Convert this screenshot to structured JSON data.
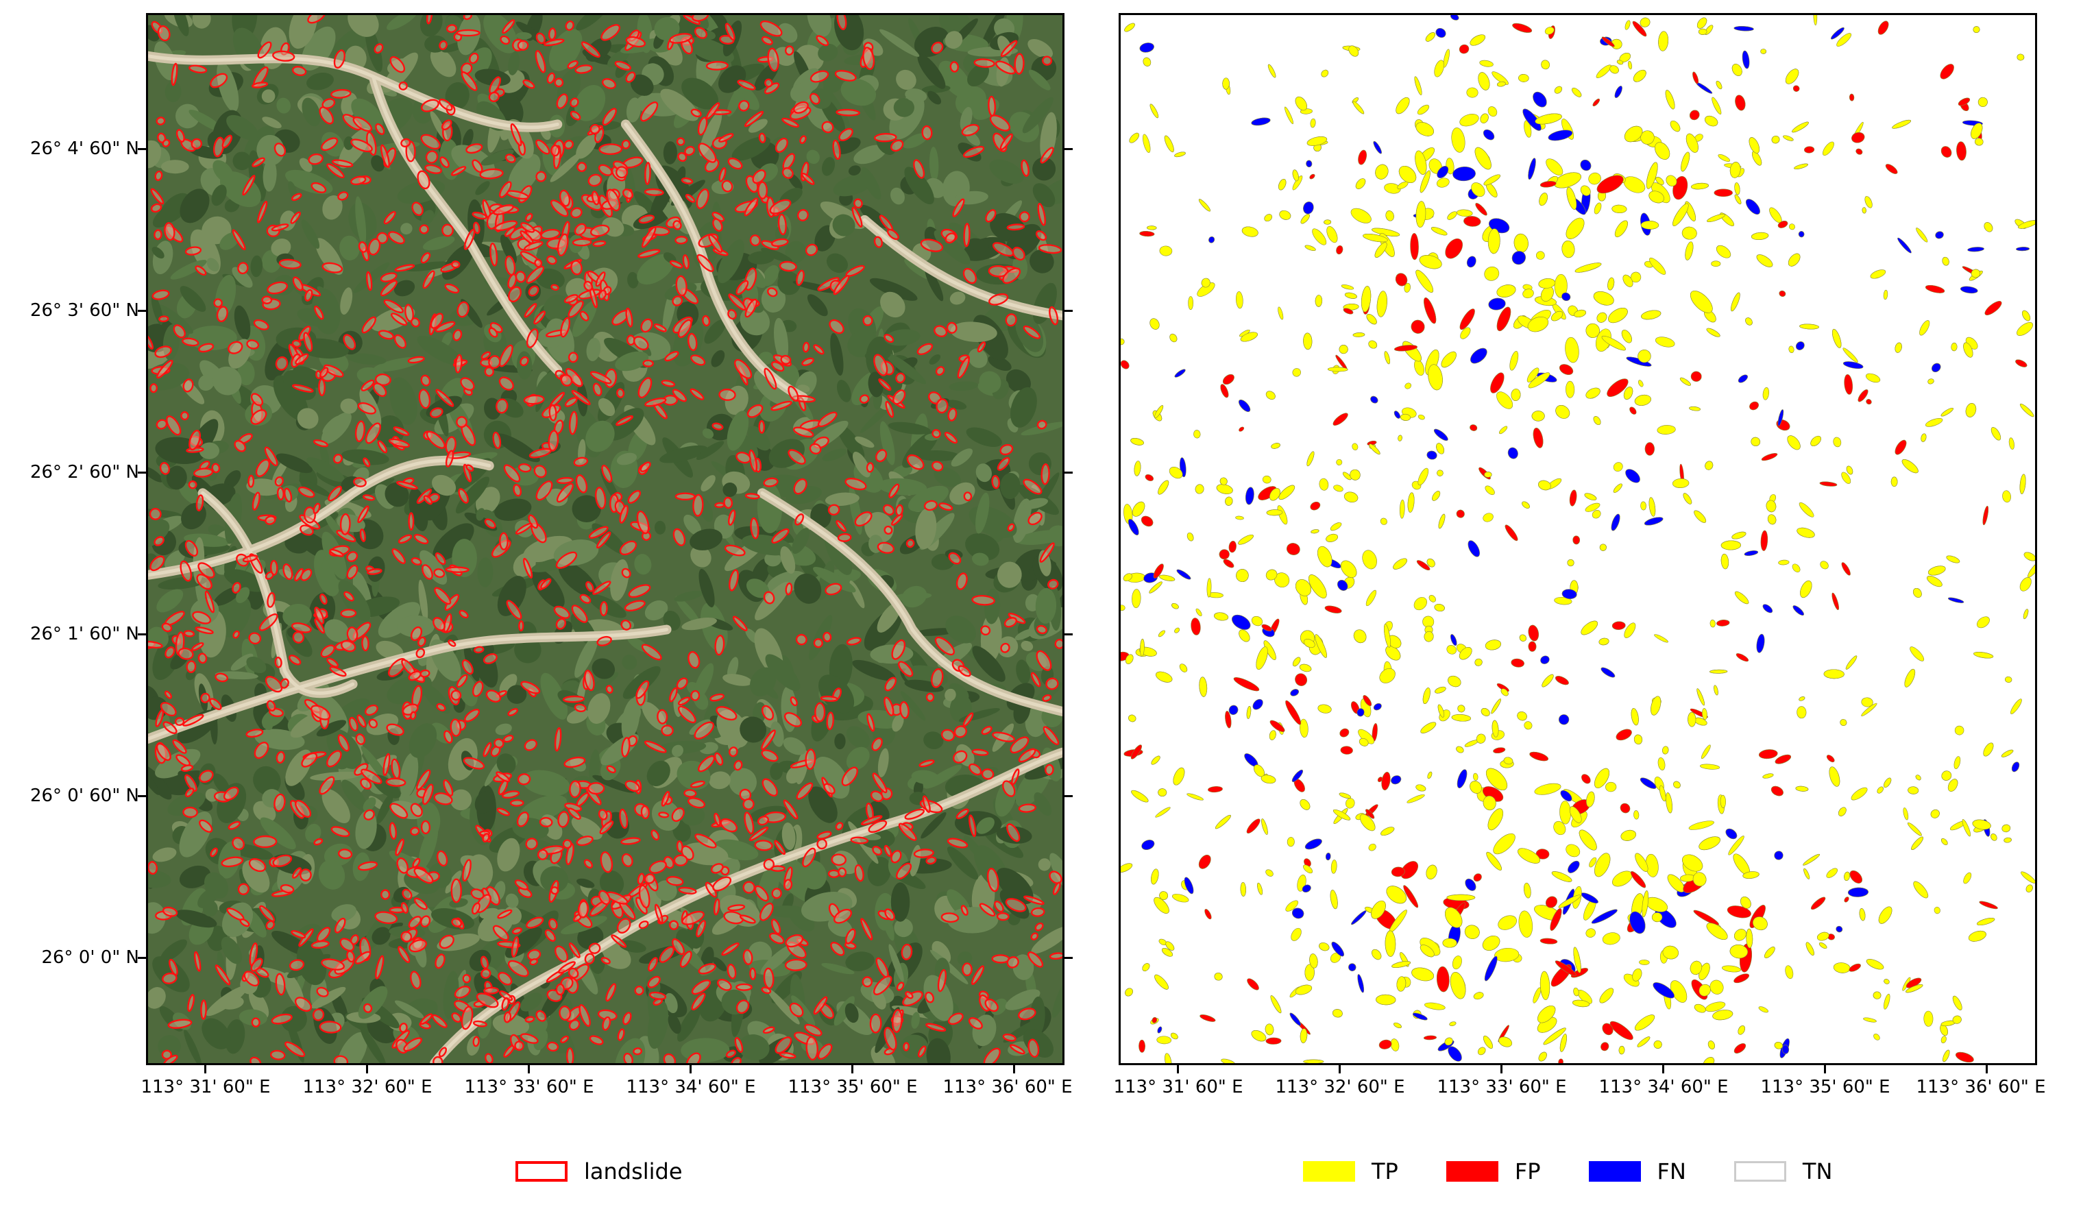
{
  "left_map": {
    "y_ticks": [
      "26° 4' 60\" N",
      "26° 3' 60\" N",
      "26° 2' 60\" N",
      "26° 1' 60\" N",
      "26° 0' 60\" N",
      "26° 0' 0\" N"
    ],
    "x_ticks": [
      "113° 31' 60\" E",
      "113° 32' 60\" E",
      "113° 33' 60\" E",
      "113° 34' 60\" E",
      "113° 35' 60\" E",
      "113° 36' 60\" E"
    ],
    "legend": [
      {
        "label": "landslide",
        "color": "#ff0000",
        "style": "outline"
      }
    ]
  },
  "right_map": {
    "x_ticks": [
      "113° 31' 60\" E",
      "113° 32' 60\" E",
      "113° 33' 60\" E",
      "113° 34' 60\" E",
      "113° 35' 60\" E",
      "113° 36' 60\" E"
    ],
    "legend": [
      {
        "label": "TP",
        "color": "#ffff00",
        "style": "fill"
      },
      {
        "label": "FP",
        "color": "#ff0000",
        "style": "fill"
      },
      {
        "label": "FN",
        "color": "#0000ff",
        "style": "fill"
      },
      {
        "label": "TN",
        "color": "#cccccc",
        "style": "outline"
      }
    ]
  }
}
